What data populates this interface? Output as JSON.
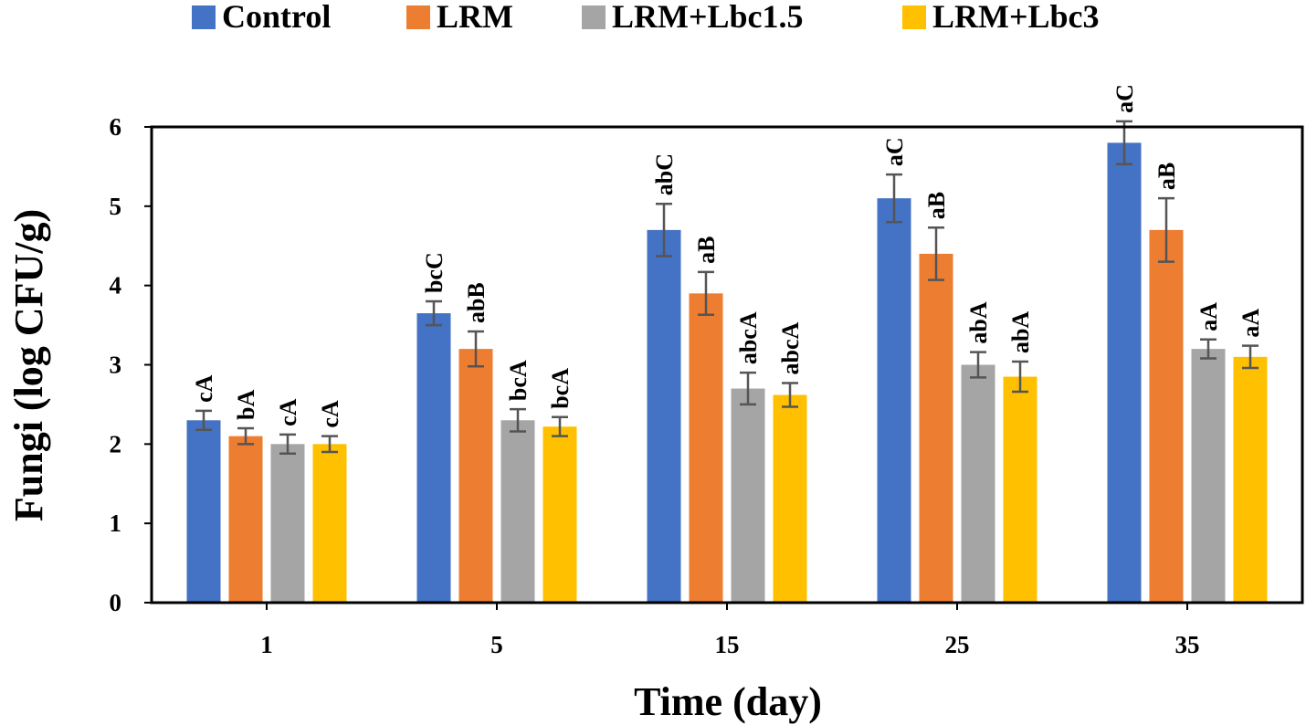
{
  "chart_data": {
    "type": "bar",
    "title": "",
    "xlabel": "Time (day)",
    "ylabel": "Fungi (log CFU/g)",
    "ylim": [
      0,
      6
    ],
    "yticks": [
      "0",
      "1",
      "2",
      "3",
      "4",
      "5",
      "6"
    ],
    "categories": [
      "1",
      "5",
      "15",
      "25",
      "35"
    ],
    "legend_position": "top",
    "series": [
      {
        "name": "Control",
        "color": "#4472C4",
        "values": [
          2.3,
          3.65,
          4.7,
          5.1,
          5.8
        ],
        "errors": [
          0.12,
          0.15,
          0.33,
          0.3,
          0.27
        ],
        "labels": [
          "cA",
          "bcC",
          "abC",
          "aC",
          "aC"
        ]
      },
      {
        "name": "LRM",
        "color": "#ED7D31",
        "values": [
          2.1,
          3.2,
          3.9,
          4.4,
          4.7
        ],
        "errors": [
          0.1,
          0.22,
          0.27,
          0.33,
          0.4
        ],
        "labels": [
          "bA",
          "abB",
          "aB",
          "aB",
          "aB"
        ]
      },
      {
        "name": "LRM+Lbc1.5",
        "color": "#A5A5A5",
        "values": [
          2.0,
          2.3,
          2.7,
          3.0,
          3.2
        ],
        "errors": [
          0.12,
          0.14,
          0.2,
          0.16,
          0.12
        ],
        "labels": [
          "cA",
          "bcA",
          "abcA",
          "abA",
          "aA"
        ]
      },
      {
        "name": "LRM+Lbc3",
        "color": "#FFC000",
        "values": [
          2.0,
          2.22,
          2.62,
          2.85,
          3.1
        ],
        "errors": [
          0.1,
          0.12,
          0.15,
          0.19,
          0.14
        ],
        "labels": [
          "cA",
          "bcA",
          "abcA",
          "abA",
          "aA"
        ]
      }
    ]
  }
}
